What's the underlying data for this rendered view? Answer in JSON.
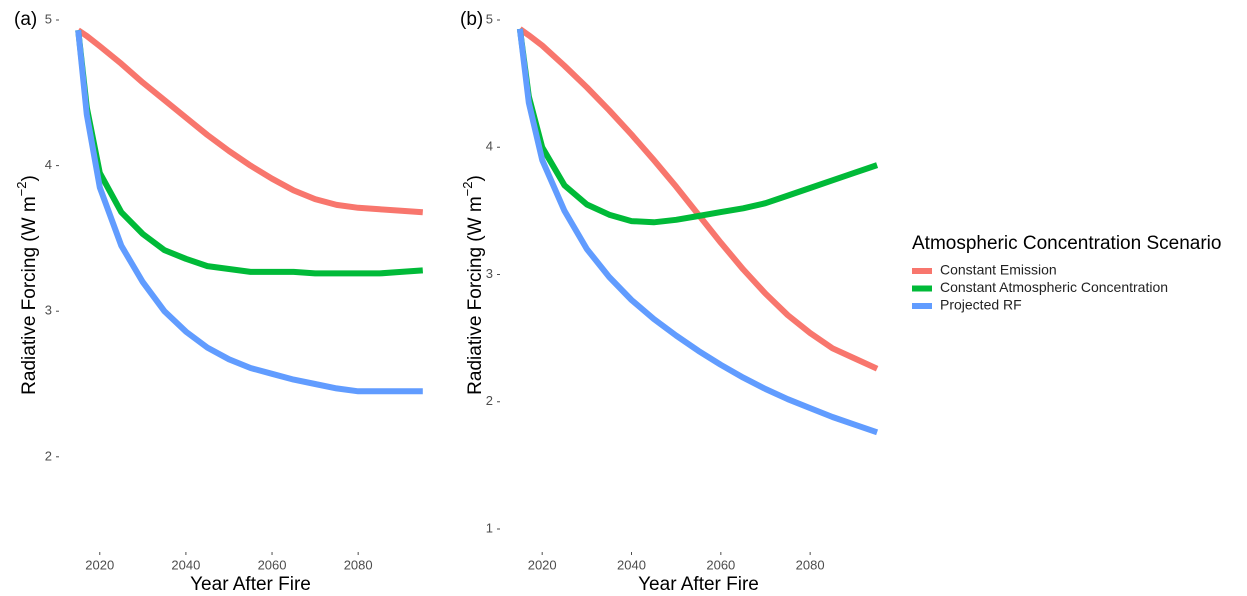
{
  "chart_data": [
    {
      "type": "line",
      "label": "(a)",
      "x_label": "Year After Fire",
      "y_label": {
        "text": "Radiative Forcing (W m",
        "superscript": "−2",
        "suffix": ")"
      },
      "legend_title": "Atmospheric Concentration Scenario",
      "x": [
        2015,
        2017,
        2020,
        2025,
        2030,
        2035,
        2040,
        2045,
        2050,
        2055,
        2060,
        2065,
        2070,
        2075,
        2080,
        2085,
        2090,
        2095
      ],
      "series": [
        {
          "name": "Constant Emission",
          "color": "#F8766D",
          "values": [
            4.93,
            4.89,
            4.82,
            4.7,
            4.57,
            4.45,
            4.33,
            4.21,
            4.1,
            4.0,
            3.91,
            3.83,
            3.77,
            3.73,
            3.71,
            3.7,
            3.69,
            3.68
          ]
        },
        {
          "name": "Constant Atmospheric Concentration",
          "color": "#00BA38",
          "values": [
            4.93,
            4.4,
            3.95,
            3.68,
            3.53,
            3.42,
            3.36,
            3.31,
            3.29,
            3.27,
            3.27,
            3.27,
            3.26,
            3.26,
            3.26,
            3.26,
            3.27,
            3.28
          ]
        },
        {
          "name": "Projected RF",
          "color": "#619CFF",
          "values": [
            4.93,
            4.35,
            3.85,
            3.45,
            3.2,
            3.0,
            2.86,
            2.75,
            2.67,
            2.61,
            2.57,
            2.53,
            2.5,
            2.47,
            2.45,
            2.45,
            2.45,
            2.45
          ]
        }
      ],
      "xlim": [
        2011,
        2099
      ],
      "xticks": [
        2020,
        2040,
        2060,
        2080
      ],
      "ylim": [
        1.36,
        5.0
      ],
      "yticks": [
        2,
        3,
        4,
        5
      ],
      "grid": false
    },
    {
      "type": "line",
      "label": "(b)",
      "x_label": "Year After Fire",
      "y_label": {
        "text": "Radiative Forcing (W m",
        "superscript": "−2",
        "suffix": ")"
      },
      "x": [
        2015,
        2017,
        2020,
        2025,
        2030,
        2035,
        2040,
        2045,
        2050,
        2055,
        2060,
        2065,
        2070,
        2075,
        2080,
        2085,
        2090,
        2095
      ],
      "series": [
        {
          "name": "Constant Emission",
          "color": "#F8766D",
          "values": [
            4.93,
            4.88,
            4.8,
            4.64,
            4.47,
            4.29,
            4.1,
            3.9,
            3.69,
            3.47,
            3.25,
            3.04,
            2.85,
            2.68,
            2.54,
            2.42,
            2.34,
            2.26
          ]
        },
        {
          "name": "Constant Atmospheric Concentration",
          "color": "#00BA38",
          "values": [
            4.93,
            4.4,
            4.0,
            3.7,
            3.55,
            3.47,
            3.42,
            3.41,
            3.43,
            3.46,
            3.49,
            3.52,
            3.56,
            3.62,
            3.68,
            3.74,
            3.8,
            3.86
          ]
        },
        {
          "name": "Projected RF",
          "color": "#619CFF",
          "values": [
            4.93,
            4.35,
            3.9,
            3.5,
            3.2,
            2.98,
            2.8,
            2.65,
            2.52,
            2.4,
            2.29,
            2.19,
            2.1,
            2.02,
            1.95,
            1.88,
            1.82,
            1.76
          ]
        }
      ],
      "xlim": [
        2011,
        2099
      ],
      "xticks": [
        2020,
        2040,
        2060,
        2080
      ],
      "ylim": [
        0.835,
        5.0
      ],
      "yticks": [
        1,
        2,
        3,
        4,
        5
      ],
      "grid": false
    }
  ]
}
